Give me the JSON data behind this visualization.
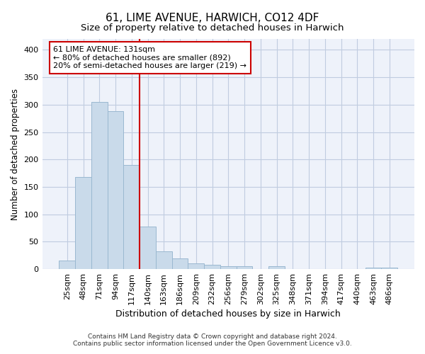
{
  "title": "61, LIME AVENUE, HARWICH, CO12 4DF",
  "subtitle": "Size of property relative to detached houses in Harwich",
  "xlabel": "Distribution of detached houses by size in Harwich",
  "ylabel": "Number of detached properties",
  "categories": [
    "25sqm",
    "48sqm",
    "71sqm",
    "94sqm",
    "117sqm",
    "140sqm",
    "163sqm",
    "186sqm",
    "209sqm",
    "232sqm",
    "256sqm",
    "279sqm",
    "302sqm",
    "325sqm",
    "348sqm",
    "371sqm",
    "394sqm",
    "417sqm",
    "440sqm",
    "463sqm",
    "486sqm"
  ],
  "values": [
    15,
    168,
    305,
    288,
    190,
    78,
    32,
    19,
    10,
    8,
    5,
    5,
    0,
    5,
    0,
    0,
    0,
    0,
    0,
    3,
    3
  ],
  "bar_color": "#c9daea",
  "bar_edge_color": "#9ab8d0",
  "vline_x_index": 5,
  "vline_color": "#cc0000",
  "annotation_text": "61 LIME AVENUE: 131sqm\n← 80% of detached houses are smaller (892)\n20% of semi-detached houses are larger (219) →",
  "annotation_box_color": "#ffffff",
  "annotation_box_edge_color": "#cc0000",
  "ylim": [
    0,
    420
  ],
  "yticks": [
    0,
    50,
    100,
    150,
    200,
    250,
    300,
    350,
    400
  ],
  "grid_color": "#c0cce0",
  "background_color": "#eef2fa",
  "footer": "Contains HM Land Registry data © Crown copyright and database right 2024.\nContains public sector information licensed under the Open Government Licence v3.0.",
  "title_fontsize": 11,
  "subtitle_fontsize": 9.5,
  "xlabel_fontsize": 9,
  "ylabel_fontsize": 8.5,
  "tick_fontsize": 8,
  "annotation_fontsize": 8,
  "footer_fontsize": 6.5
}
